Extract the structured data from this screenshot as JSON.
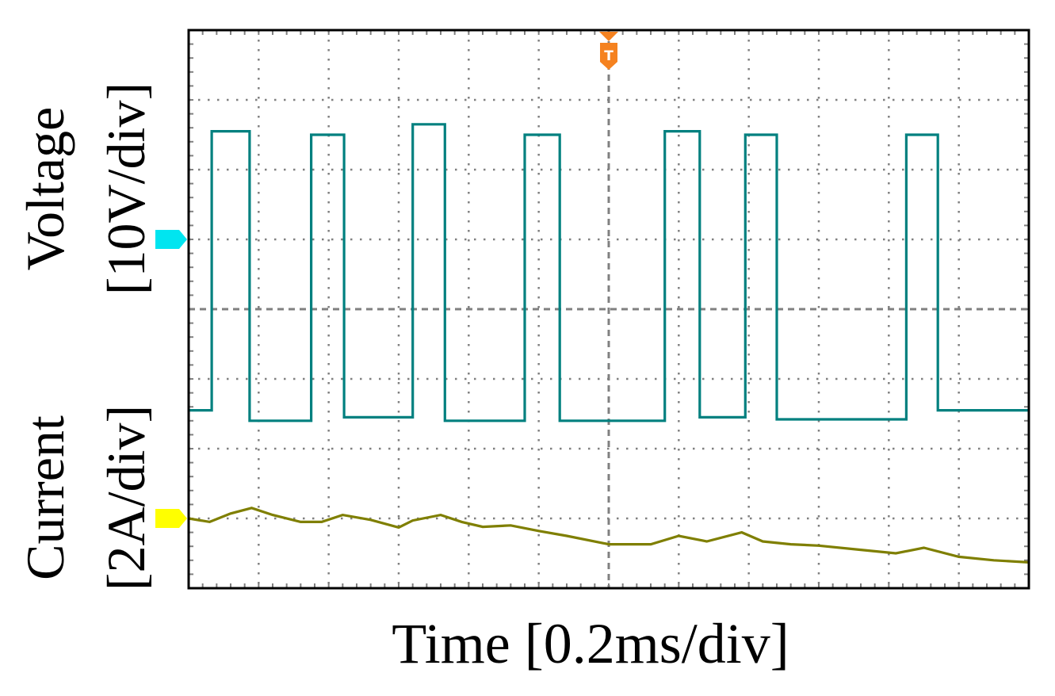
{
  "chart_data": {
    "type": "line",
    "instrument": "oscilloscope",
    "xlabel": "Time [0.2ms/div]",
    "ylabels": [
      {
        "name": "Voltage",
        "scale": "[10V/div]"
      },
      {
        "name": "Current",
        "scale": "[2A/div]"
      }
    ],
    "grid": true,
    "divisions": {
      "x": 12,
      "y": 8
    },
    "trigger_marker": "T",
    "x_unit": "div",
    "y_unit": "div",
    "xlim": [
      0,
      12
    ],
    "ylim": [
      -4,
      4
    ],
    "series": [
      {
        "name": "Voltage",
        "color": "#00807f",
        "marker_color": "#00e5f0",
        "reference_level_div": 1,
        "x": [
          0,
          0.33,
          0.33,
          0.87,
          0.87,
          1.75,
          1.75,
          2.22,
          2.22,
          3.2,
          3.2,
          3.66,
          3.66,
          4.8,
          4.8,
          5.3,
          5.3,
          6.8,
          6.8,
          7.3,
          7.3,
          7.95,
          7.95,
          8.4,
          8.4,
          10.25,
          10.25,
          10.7,
          10.7,
          12
        ],
        "values": [
          -1.45,
          -1.45,
          2.55,
          2.55,
          -1.6,
          -1.6,
          2.5,
          2.5,
          -1.55,
          -1.55,
          2.65,
          2.65,
          -1.6,
          -1.6,
          2.5,
          2.5,
          -1.6,
          -1.6,
          2.55,
          2.55,
          -1.55,
          -1.55,
          2.5,
          2.5,
          -1.58,
          -1.58,
          2.5,
          2.5,
          -1.45,
          -1.45
        ]
      },
      {
        "name": "Current",
        "color": "#7f7f00",
        "marker_color": "#ffff00",
        "reference_level_div": -3,
        "x": [
          0,
          0.3,
          0.6,
          0.9,
          1.2,
          1.6,
          1.9,
          2.2,
          2.6,
          3.0,
          3.2,
          3.6,
          3.9,
          4.2,
          4.6,
          5.0,
          5.4,
          6.0,
          6.6,
          7.0,
          7.4,
          7.9,
          8.2,
          8.6,
          9.0,
          9.6,
          10.1,
          10.5,
          11.0,
          11.5,
          12.0
        ],
        "values": [
          -3.0,
          -3.05,
          -2.93,
          -2.85,
          -2.95,
          -3.05,
          -3.05,
          -2.95,
          -3.02,
          -3.13,
          -3.03,
          -2.95,
          -3.05,
          -3.12,
          -3.1,
          -3.18,
          -3.25,
          -3.37,
          -3.37,
          -3.25,
          -3.33,
          -3.2,
          -3.33,
          -3.37,
          -3.39,
          -3.45,
          -3.5,
          -3.42,
          -3.55,
          -3.6,
          -3.63
        ]
      }
    ]
  }
}
